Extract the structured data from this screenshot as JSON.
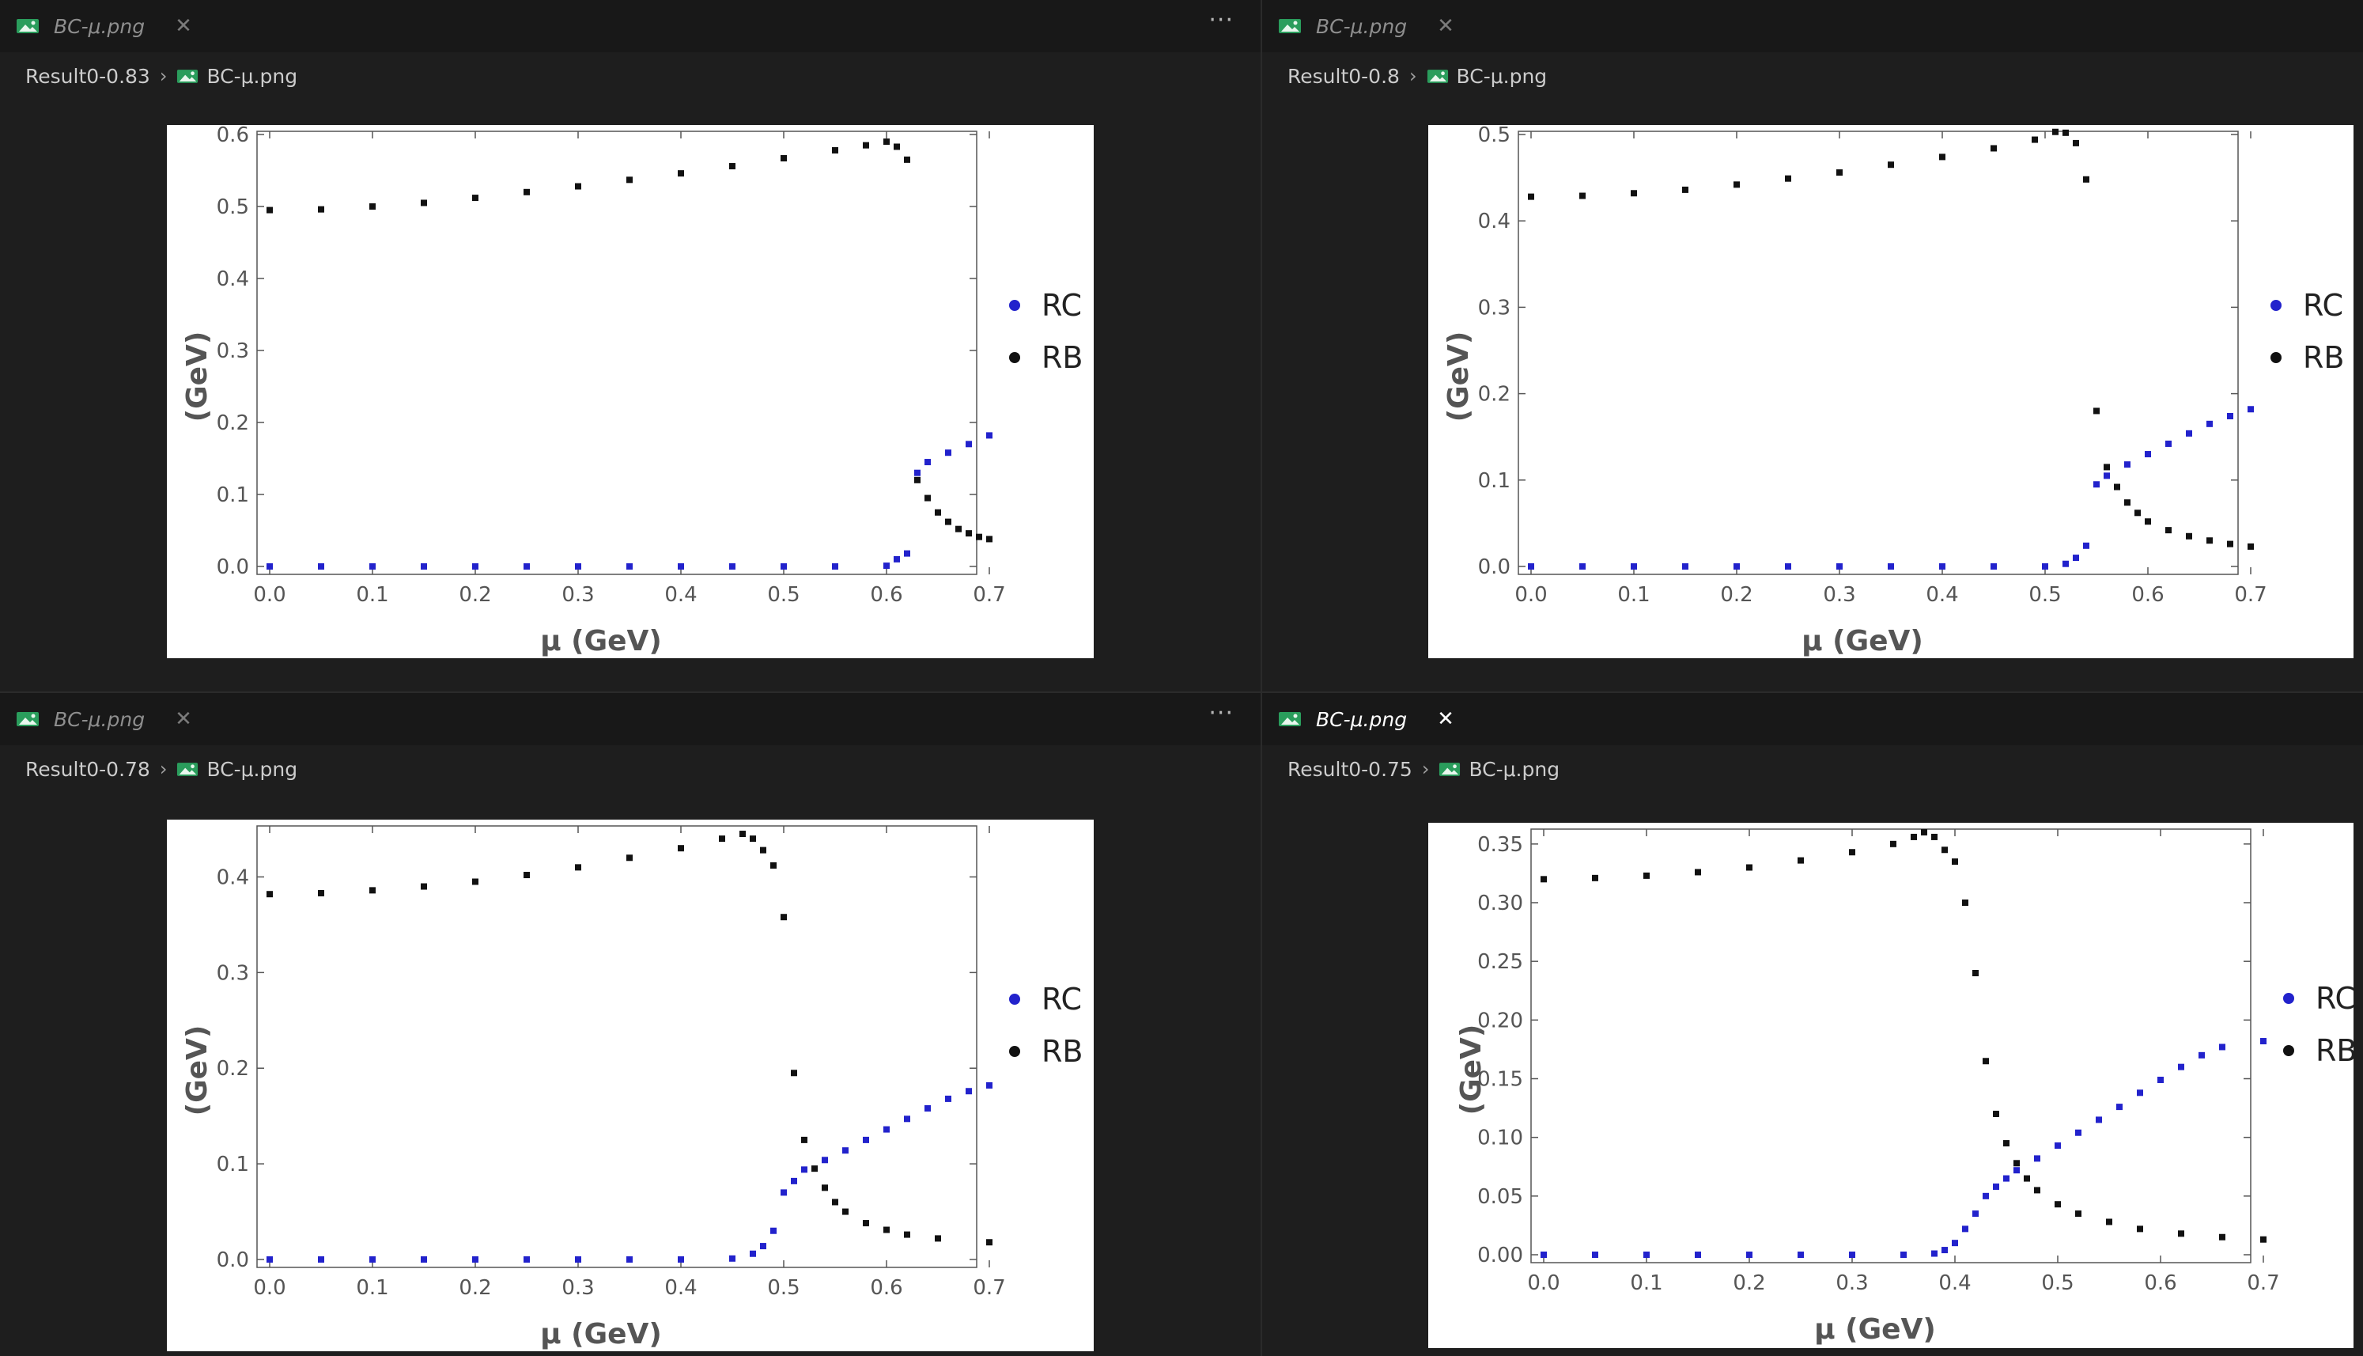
{
  "theme": {
    "point_black": "#111111",
    "point_blue": "#2222cc",
    "axis": "#555555"
  },
  "panes": [
    {
      "tab": {
        "title": "BC-μ.png",
        "active": false,
        "icon": "image-file-icon"
      },
      "show_more": true,
      "more_label": "···",
      "breadcrumb": {
        "folder": "Result0-0.83",
        "file": "BC-μ.png"
      },
      "chart_data": {
        "type": "scatter",
        "xlabel": "μ (GeV)",
        "ylabel": "(GeV)",
        "xlim": [
          0,
          0.7
        ],
        "ylim": [
          0,
          0.6
        ],
        "xticks": [
          0.0,
          0.1,
          0.2,
          0.3,
          0.4,
          0.5,
          0.6,
          0.7
        ],
        "yticks": [
          0.0,
          0.1,
          0.2,
          0.3,
          0.4,
          0.5,
          0.6
        ],
        "ytick_decimals": 1,
        "legend": "right",
        "series": [
          {
            "name": "RC",
            "color": "#2222cc",
            "points": [
              [
                0.0,
                0.0
              ],
              [
                0.05,
                0.0
              ],
              [
                0.1,
                0.0
              ],
              [
                0.15,
                0.0
              ],
              [
                0.2,
                0.0
              ],
              [
                0.25,
                0.0
              ],
              [
                0.3,
                0.0
              ],
              [
                0.35,
                0.0
              ],
              [
                0.4,
                0.0
              ],
              [
                0.45,
                0.0
              ],
              [
                0.5,
                0.0
              ],
              [
                0.55,
                0.0
              ],
              [
                0.6,
                0.001
              ],
              [
                0.61,
                0.01
              ],
              [
                0.62,
                0.018
              ],
              [
                0.63,
                0.13
              ],
              [
                0.64,
                0.145
              ],
              [
                0.66,
                0.158
              ],
              [
                0.68,
                0.17
              ],
              [
                0.7,
                0.182
              ]
            ]
          },
          {
            "name": "RB",
            "color": "#111111",
            "points": [
              [
                0.0,
                0.495
              ],
              [
                0.05,
                0.496
              ],
              [
                0.1,
                0.5
              ],
              [
                0.15,
                0.505
              ],
              [
                0.2,
                0.512
              ],
              [
                0.25,
                0.52
              ],
              [
                0.3,
                0.528
              ],
              [
                0.35,
                0.537
              ],
              [
                0.4,
                0.546
              ],
              [
                0.45,
                0.556
              ],
              [
                0.5,
                0.567
              ],
              [
                0.55,
                0.578
              ],
              [
                0.58,
                0.585
              ],
              [
                0.6,
                0.59
              ],
              [
                0.61,
                0.583
              ],
              [
                0.62,
                0.565
              ],
              [
                0.63,
                0.12
              ],
              [
                0.64,
                0.095
              ],
              [
                0.65,
                0.075
              ],
              [
                0.66,
                0.062
              ],
              [
                0.67,
                0.052
              ],
              [
                0.68,
                0.046
              ],
              [
                0.69,
                0.041
              ],
              [
                0.7,
                0.038
              ]
            ]
          }
        ]
      }
    },
    {
      "tab": {
        "title": "BC-μ.png",
        "active": false,
        "icon": "image-file-icon"
      },
      "show_more": false,
      "more_label": "",
      "breadcrumb": {
        "folder": "Result0-0.8",
        "file": "BC-μ.png"
      },
      "chart_data": {
        "type": "scatter",
        "xlabel": "μ (GeV)",
        "ylabel": "(GeV)",
        "xlim": [
          0,
          0.7
        ],
        "ylim": [
          0,
          0.5
        ],
        "xticks": [
          0.0,
          0.1,
          0.2,
          0.3,
          0.4,
          0.5,
          0.6,
          0.7
        ],
        "yticks": [
          0.0,
          0.1,
          0.2,
          0.3,
          0.4,
          0.5
        ],
        "ytick_decimals": 1,
        "legend": "right",
        "series": [
          {
            "name": "RC",
            "color": "#2222cc",
            "points": [
              [
                0.0,
                0.0
              ],
              [
                0.05,
                0.0
              ],
              [
                0.1,
                0.0
              ],
              [
                0.15,
                0.0
              ],
              [
                0.2,
                0.0
              ],
              [
                0.25,
                0.0
              ],
              [
                0.3,
                0.0
              ],
              [
                0.35,
                0.0
              ],
              [
                0.4,
                0.0
              ],
              [
                0.45,
                0.0
              ],
              [
                0.5,
                0.0
              ],
              [
                0.52,
                0.003
              ],
              [
                0.53,
                0.01
              ],
              [
                0.54,
                0.024
              ],
              [
                0.55,
                0.095
              ],
              [
                0.56,
                0.105
              ],
              [
                0.58,
                0.118
              ],
              [
                0.6,
                0.13
              ],
              [
                0.62,
                0.142
              ],
              [
                0.64,
                0.154
              ],
              [
                0.66,
                0.165
              ],
              [
                0.68,
                0.174
              ],
              [
                0.7,
                0.182
              ]
            ]
          },
          {
            "name": "RB",
            "color": "#111111",
            "points": [
              [
                0.0,
                0.428
              ],
              [
                0.05,
                0.429
              ],
              [
                0.1,
                0.432
              ],
              [
                0.15,
                0.436
              ],
              [
                0.2,
                0.442
              ],
              [
                0.25,
                0.449
              ],
              [
                0.3,
                0.456
              ],
              [
                0.35,
                0.465
              ],
              [
                0.4,
                0.474
              ],
              [
                0.45,
                0.484
              ],
              [
                0.49,
                0.494
              ],
              [
                0.51,
                0.503
              ],
              [
                0.52,
                0.502
              ],
              [
                0.53,
                0.49
              ],
              [
                0.54,
                0.448
              ],
              [
                0.55,
                0.18
              ],
              [
                0.56,
                0.115
              ],
              [
                0.57,
                0.092
              ],
              [
                0.58,
                0.074
              ],
              [
                0.59,
                0.062
              ],
              [
                0.6,
                0.052
              ],
              [
                0.62,
                0.042
              ],
              [
                0.64,
                0.035
              ],
              [
                0.66,
                0.03
              ],
              [
                0.68,
                0.026
              ],
              [
                0.7,
                0.023
              ]
            ]
          }
        ]
      }
    },
    {
      "tab": {
        "title": "BC-μ.png",
        "active": false,
        "icon": "image-file-icon"
      },
      "show_more": true,
      "more_label": "···",
      "breadcrumb": {
        "folder": "Result0-0.78",
        "file": "BC-μ.png"
      },
      "chart_data": {
        "type": "scatter",
        "xlabel": "μ (GeV)",
        "ylabel": "(GeV)",
        "xlim": [
          0,
          0.7
        ],
        "ylim": [
          0,
          0.45
        ],
        "xticks": [
          0.0,
          0.1,
          0.2,
          0.3,
          0.4,
          0.5,
          0.6,
          0.7
        ],
        "yticks": [
          0.0,
          0.1,
          0.2,
          0.3,
          0.4
        ],
        "ytick_decimals": 1,
        "legend": "right",
        "series": [
          {
            "name": "RC",
            "color": "#2222cc",
            "points": [
              [
                0.0,
                0.0
              ],
              [
                0.05,
                0.0
              ],
              [
                0.1,
                0.0
              ],
              [
                0.15,
                0.0
              ],
              [
                0.2,
                0.0
              ],
              [
                0.25,
                0.0
              ],
              [
                0.3,
                0.0
              ],
              [
                0.35,
                0.0
              ],
              [
                0.4,
                0.0
              ],
              [
                0.45,
                0.001
              ],
              [
                0.47,
                0.006
              ],
              [
                0.48,
                0.014
              ],
              [
                0.49,
                0.03
              ],
              [
                0.5,
                0.07
              ],
              [
                0.51,
                0.082
              ],
              [
                0.52,
                0.094
              ],
              [
                0.54,
                0.104
              ],
              [
                0.56,
                0.114
              ],
              [
                0.58,
                0.125
              ],
              [
                0.6,
                0.136
              ],
              [
                0.62,
                0.147
              ],
              [
                0.64,
                0.158
              ],
              [
                0.66,
                0.168
              ],
              [
                0.68,
                0.176
              ],
              [
                0.7,
                0.182
              ]
            ]
          },
          {
            "name": "RB",
            "color": "#111111",
            "points": [
              [
                0.0,
                0.382
              ],
              [
                0.05,
                0.383
              ],
              [
                0.1,
                0.386
              ],
              [
                0.15,
                0.39
              ],
              [
                0.2,
                0.395
              ],
              [
                0.25,
                0.402
              ],
              [
                0.3,
                0.41
              ],
              [
                0.35,
                0.42
              ],
              [
                0.4,
                0.43
              ],
              [
                0.44,
                0.44
              ],
              [
                0.46,
                0.445
              ],
              [
                0.47,
                0.44
              ],
              [
                0.48,
                0.428
              ],
              [
                0.49,
                0.412
              ],
              [
                0.5,
                0.358
              ],
              [
                0.51,
                0.195
              ],
              [
                0.52,
                0.125
              ],
              [
                0.53,
                0.095
              ],
              [
                0.54,
                0.075
              ],
              [
                0.55,
                0.06
              ],
              [
                0.56,
                0.05
              ],
              [
                0.58,
                0.038
              ],
              [
                0.6,
                0.031
              ],
              [
                0.62,
                0.026
              ],
              [
                0.65,
                0.022
              ],
              [
                0.7,
                0.018
              ]
            ]
          }
        ]
      }
    },
    {
      "tab": {
        "title": "BC-μ.png",
        "active": true,
        "icon": "image-file-icon"
      },
      "show_more": false,
      "more_label": "",
      "breadcrumb": {
        "folder": "Result0-0.75",
        "file": "BC-μ.png"
      },
      "chart_data": {
        "type": "scatter",
        "xlabel": "μ (GeV)",
        "ylabel": "(GeV)",
        "xlim": [
          0,
          0.7
        ],
        "ylim": [
          0,
          0.36
        ],
        "xticks": [
          0.0,
          0.1,
          0.2,
          0.3,
          0.4,
          0.5,
          0.6,
          0.7
        ],
        "yticks": [
          0.0,
          0.05,
          0.1,
          0.15,
          0.2,
          0.25,
          0.3,
          0.35
        ],
        "ytick_decimals": 2,
        "legend": "right",
        "series": [
          {
            "name": "RC",
            "color": "#2222cc",
            "points": [
              [
                0.0,
                0.0
              ],
              [
                0.05,
                0.0
              ],
              [
                0.1,
                0.0
              ],
              [
                0.15,
                0.0
              ],
              [
                0.2,
                0.0
              ],
              [
                0.25,
                0.0
              ],
              [
                0.3,
                0.0
              ],
              [
                0.35,
                0.0
              ],
              [
                0.38,
                0.001
              ],
              [
                0.39,
                0.004
              ],
              [
                0.4,
                0.01
              ],
              [
                0.41,
                0.022
              ],
              [
                0.42,
                0.035
              ],
              [
                0.43,
                0.05
              ],
              [
                0.44,
                0.058
              ],
              [
                0.45,
                0.065
              ],
              [
                0.46,
                0.072
              ],
              [
                0.48,
                0.082
              ],
              [
                0.5,
                0.093
              ],
              [
                0.52,
                0.104
              ],
              [
                0.54,
                0.115
              ],
              [
                0.56,
                0.126
              ],
              [
                0.58,
                0.138
              ],
              [
                0.6,
                0.149
              ],
              [
                0.62,
                0.16
              ],
              [
                0.64,
                0.17
              ],
              [
                0.66,
                0.177
              ],
              [
                0.7,
                0.182
              ]
            ]
          },
          {
            "name": "RB",
            "color": "#111111",
            "points": [
              [
                0.0,
                0.32
              ],
              [
                0.05,
                0.321
              ],
              [
                0.1,
                0.323
              ],
              [
                0.15,
                0.326
              ],
              [
                0.2,
                0.33
              ],
              [
                0.25,
                0.336
              ],
              [
                0.3,
                0.343
              ],
              [
                0.34,
                0.35
              ],
              [
                0.36,
                0.356
              ],
              [
                0.37,
                0.36
              ],
              [
                0.38,
                0.356
              ],
              [
                0.39,
                0.345
              ],
              [
                0.4,
                0.335
              ],
              [
                0.41,
                0.3
              ],
              [
                0.42,
                0.24
              ],
              [
                0.43,
                0.165
              ],
              [
                0.44,
                0.12
              ],
              [
                0.45,
                0.095
              ],
              [
                0.46,
                0.078
              ],
              [
                0.47,
                0.065
              ],
              [
                0.48,
                0.055
              ],
              [
                0.5,
                0.043
              ],
              [
                0.52,
                0.035
              ],
              [
                0.55,
                0.028
              ],
              [
                0.58,
                0.022
              ],
              [
                0.62,
                0.018
              ],
              [
                0.66,
                0.015
              ],
              [
                0.7,
                0.013
              ]
            ]
          }
        ]
      }
    }
  ]
}
